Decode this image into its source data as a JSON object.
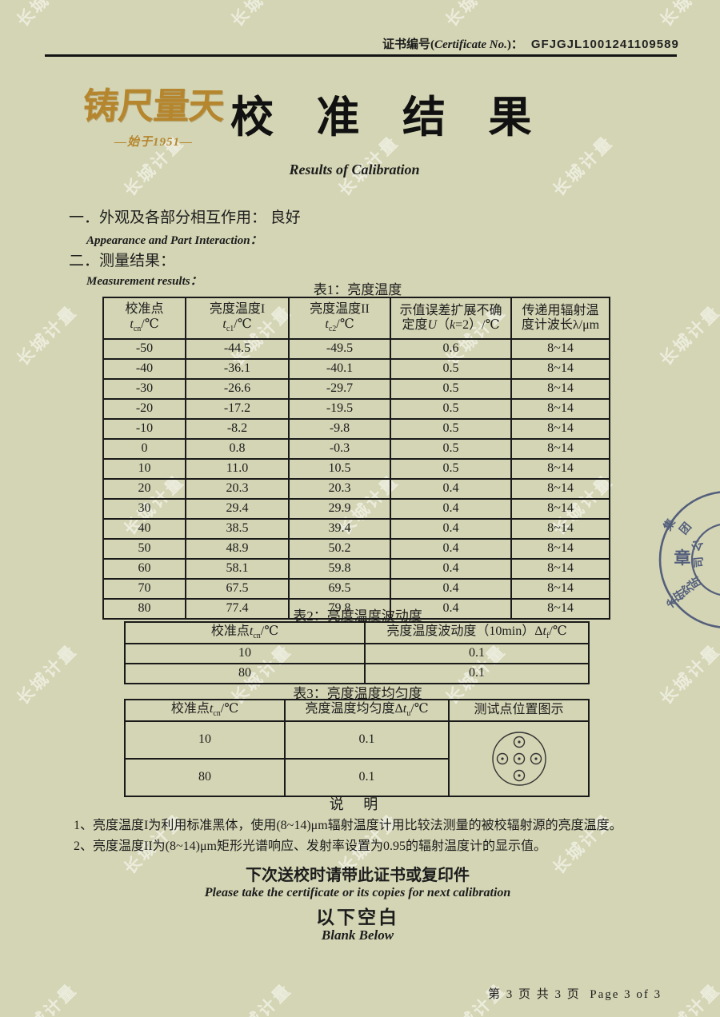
{
  "colors": {
    "background": "#d4d5b4",
    "gold": "#b5862e",
    "seal_navy": "#4a5578",
    "text": "#1c1c1c"
  },
  "watermark_text": "长城计量",
  "header": {
    "cert_label_zh": "证书编号(",
    "cert_label_en": "Certificate No.",
    "cert_label_close": ")：",
    "cert_no": "GFJGJL1001241109589"
  },
  "logo": {
    "main": "铸尺量天",
    "sub": "—始于1951—"
  },
  "title": {
    "zh": "校 准 结 果",
    "en": "Results of Calibration"
  },
  "sections": {
    "item1_zh": "一．外观及各部分相互作用： 良好",
    "item1_en": "Appearance and Part Interaction：",
    "item2_zh": "二．测量结果：",
    "item2_en": "Measurement results："
  },
  "table1": {
    "title": "表1：亮度温度",
    "col1": {
      "line1": "校准点",
      "sym": "t",
      "sub": "cn",
      "unit": "/℃"
    },
    "col2": {
      "line1": "亮度温度I",
      "sym": "t",
      "sub": "c1",
      "unit": "/℃"
    },
    "col3": {
      "line1": "亮度温度II",
      "sym": "t",
      "sub": "c2",
      "unit": "/℃"
    },
    "col4": {
      "line1": "示值误差扩展不确",
      "l2pre": "定度",
      "l2U": "U",
      "l2mid": "（",
      "l2k": "k",
      "l2post": "=2）/℃"
    },
    "col5": {
      "line1": "传递用辐射温",
      "line2": "度计波长λ/μm"
    },
    "rows": [
      [
        "-50",
        "-44.5",
        "-49.5",
        "0.6",
        "8~14"
      ],
      [
        "-40",
        "-36.1",
        "-40.1",
        "0.5",
        "8~14"
      ],
      [
        "-30",
        "-26.6",
        "-29.7",
        "0.5",
        "8~14"
      ],
      [
        "-20",
        "-17.2",
        "-19.5",
        "0.5",
        "8~14"
      ],
      [
        "-10",
        "-8.2",
        "-9.8",
        "0.5",
        "8~14"
      ],
      [
        "0",
        "0.8",
        "-0.3",
        "0.5",
        "8~14"
      ],
      [
        "10",
        "11.0",
        "10.5",
        "0.5",
        "8~14"
      ],
      [
        "20",
        "20.3",
        "20.3",
        "0.4",
        "8~14"
      ],
      [
        "30",
        "29.4",
        "29.9",
        "0.4",
        "8~14"
      ],
      [
        "40",
        "38.5",
        "39.4",
        "0.4",
        "8~14"
      ],
      [
        "50",
        "48.9",
        "50.2",
        "0.4",
        "8~14"
      ],
      [
        "60",
        "58.1",
        "59.8",
        "0.4",
        "8~14"
      ],
      [
        "70",
        "67.5",
        "69.5",
        "0.4",
        "8~14"
      ],
      [
        "80",
        "77.4",
        "79.8",
        "0.4",
        "8~14"
      ]
    ]
  },
  "table2": {
    "title": "表2：亮度温度波动度",
    "h1": {
      "pre": "校准点",
      "sym": "t",
      "sub": "cn",
      "unit": "/℃"
    },
    "h2": {
      "pre": "亮度温度波动度（10min）Δ",
      "sym": "t",
      "sub": "f",
      "unit": "/℃"
    },
    "rows": [
      [
        "10",
        "0.1"
      ],
      [
        "80",
        "0.1"
      ]
    ]
  },
  "table3": {
    "title": "表3：亮度温度均匀度",
    "h1": {
      "pre": "校准点",
      "sym": "t",
      "sub": "cn",
      "unit": "/℃"
    },
    "h2": {
      "pre": "亮度温度均匀度Δ",
      "sym": "t",
      "sub": "u",
      "unit": "/℃"
    },
    "h3": "测试点位置图示",
    "rows": [
      [
        "10",
        "0.1"
      ],
      [
        "80",
        "0.1"
      ]
    ]
  },
  "notes": {
    "heading": "说 明",
    "item1": "1、亮度温度I为利用标准黑体，使用(8~14)μm辐射温度计用比较法测量的被校辐射源的亮度温度。",
    "item2": "2、亮度温度II为(8~14)μm矩形光谱响应、发射率设置为0.95的辐射温度计的显示值。",
    "reminder_zh": "下次送校时请带此证书或复印件",
    "reminder_en": "Please take the certificate or its copies for next calibration",
    "blank_zh": "以下空白",
    "blank_en": "Blank Below"
  },
  "seal": {
    "arc_top": "集团公司",
    "center": "章",
    "arc_bottom": "术研究所"
  },
  "footer": {
    "page_zh": "第 3 页 共 3 页",
    "page_en": "Page 3 of 3"
  }
}
